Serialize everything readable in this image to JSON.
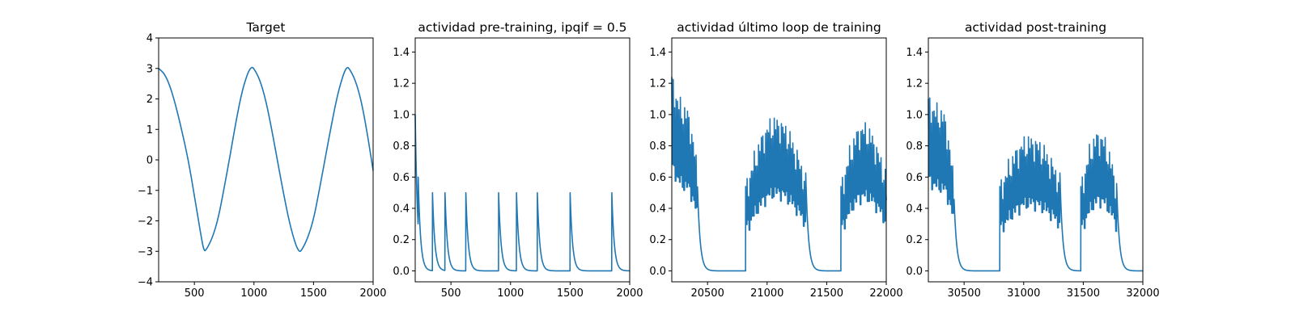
{
  "chart_data": [
    {
      "type": "line",
      "title": "Target",
      "xlim": [
        200,
        2000
      ],
      "ylim": [
        -4,
        4
      ],
      "xticks": [
        500,
        1000,
        1500,
        2000
      ],
      "xtick_labels": [
        "500",
        "1000",
        "1500",
        "2000"
      ],
      "yticks": [
        -4,
        -3,
        -2,
        -1,
        0,
        1,
        2,
        3,
        4
      ],
      "ytick_labels": [
        "−4",
        "−3",
        "−2",
        "−1",
        "0",
        "1",
        "2",
        "3",
        "4"
      ],
      "series": [
        {
          "color": "#1f77b4",
          "x": [
            200,
            250,
            300,
            350,
            400,
            450,
            500,
            550,
            580,
            600,
            650,
            700,
            750,
            800,
            850,
            900,
            950,
            980,
            1000,
            1050,
            1100,
            1150,
            1200,
            1250,
            1300,
            1350,
            1380,
            1400,
            1450,
            1500,
            1550,
            1600,
            1650,
            1700,
            1750,
            1780,
            1800,
            1850,
            1900,
            1950,
            2000
          ],
          "y": [
            3.0,
            2.83,
            2.38,
            1.69,
            0.87,
            -0.03,
            -1.17,
            -2.36,
            -3.0,
            -2.95,
            -2.57,
            -1.93,
            -0.92,
            0.15,
            1.28,
            2.26,
            2.88,
            3.05,
            3.0,
            2.63,
            1.95,
            0.98,
            -0.09,
            -1.14,
            -2.1,
            -2.79,
            -3.02,
            -2.97,
            -2.58,
            -1.96,
            -0.96,
            0.1,
            1.15,
            2.12,
            2.81,
            3.05,
            3.0,
            2.63,
            1.95,
            0.9,
            -0.35
          ]
        }
      ]
    },
    {
      "type": "line",
      "title": "actividad pre-training, ipqif = 0.5",
      "xlim": [
        200,
        2000
      ],
      "ylim": [
        -0.07,
        1.49
      ],
      "xticks": [
        500,
        1000,
        1500,
        2000
      ],
      "xtick_labels": [
        "500",
        "1000",
        "1500",
        "2000"
      ],
      "yticks": [
        0.0,
        0.2,
        0.4,
        0.6,
        0.8,
        1.0,
        1.2,
        1.4
      ],
      "ytick_labels": [
        "0.0",
        "0.2",
        "0.4",
        "0.6",
        "0.8",
        "1.0",
        "1.2",
        "1.4"
      ],
      "series": [
        {
          "color": "#1f77b4",
          "spikes": [
            {
              "t": 200,
              "amp": 1.0
            },
            {
              "t": 225,
              "amp": 0.6
            },
            {
              "t": 345,
              "amp": 0.5
            },
            {
              "t": 450,
              "amp": 0.5
            },
            {
              "t": 625,
              "amp": 0.5
            },
            {
              "t": 900,
              "amp": 0.5
            },
            {
              "t": 1050,
              "amp": 0.5
            },
            {
              "t": 1225,
              "amp": 0.5
            },
            {
              "t": 1500,
              "amp": 0.5
            },
            {
              "t": 1850,
              "amp": 0.5
            }
          ],
          "tau": 20
        }
      ]
    },
    {
      "type": "line",
      "title": "actividad último loop de training",
      "xlim": [
        20200,
        22000
      ],
      "ylim": [
        -0.07,
        1.49
      ],
      "xticks": [
        20500,
        21000,
        21500,
        22000
      ],
      "xtick_labels": [
        "20500",
        "21000",
        "21500",
        "22000"
      ],
      "yticks": [
        0.0,
        0.2,
        0.4,
        0.6,
        0.8,
        1.0,
        1.2,
        1.4
      ],
      "ytick_labels": [
        "0.0",
        "0.2",
        "0.4",
        "0.6",
        "0.8",
        "1.0",
        "1.2",
        "1.4"
      ],
      "series": [
        {
          "color": "#1f77b4",
          "bursts": [
            {
              "start": 20200,
              "end": 20420,
              "amp_start": 1.2,
              "amp_peak": 1.0,
              "amp_end": 0.6,
              "period": 12
            },
            {
              "start": 20820,
              "end": 21320,
              "amp_start": 0.5,
              "amp_peak": 0.92,
              "amp_end": 0.55,
              "period": 12
            },
            {
              "start": 21620,
              "end": 21990,
              "amp_start": 0.5,
              "amp_peak": 0.88,
              "amp_end": 0.58,
              "period": 12
            }
          ],
          "tau": 22
        }
      ]
    },
    {
      "type": "line",
      "title": "actividad post-training",
      "xlim": [
        30200,
        32000
      ],
      "ylim": [
        -0.07,
        1.49
      ],
      "xticks": [
        30500,
        31000,
        31500,
        32000
      ],
      "xtick_labels": [
        "30500",
        "31000",
        "31500",
        "32000"
      ],
      "yticks": [
        0.0,
        0.2,
        0.4,
        0.6,
        0.8,
        1.0,
        1.2,
        1.4
      ],
      "ytick_labels": [
        "0.0",
        "0.2",
        "0.4",
        "0.6",
        "0.8",
        "1.0",
        "1.2",
        "1.4"
      ],
      "series": [
        {
          "color": "#1f77b4",
          "bursts": [
            {
              "start": 30200,
              "end": 30420,
              "amp_start": 1.06,
              "amp_peak": 0.98,
              "amp_end": 0.52,
              "period": 12
            },
            {
              "start": 30800,
              "end": 31300,
              "amp_start": 0.5,
              "amp_peak": 0.8,
              "amp_end": 0.55,
              "period": 12
            },
            {
              "start": 31480,
              "end": 31780,
              "amp_start": 0.5,
              "amp_peak": 0.83,
              "amp_end": 0.52,
              "period": 12
            }
          ],
          "tau": 22
        }
      ]
    }
  ]
}
